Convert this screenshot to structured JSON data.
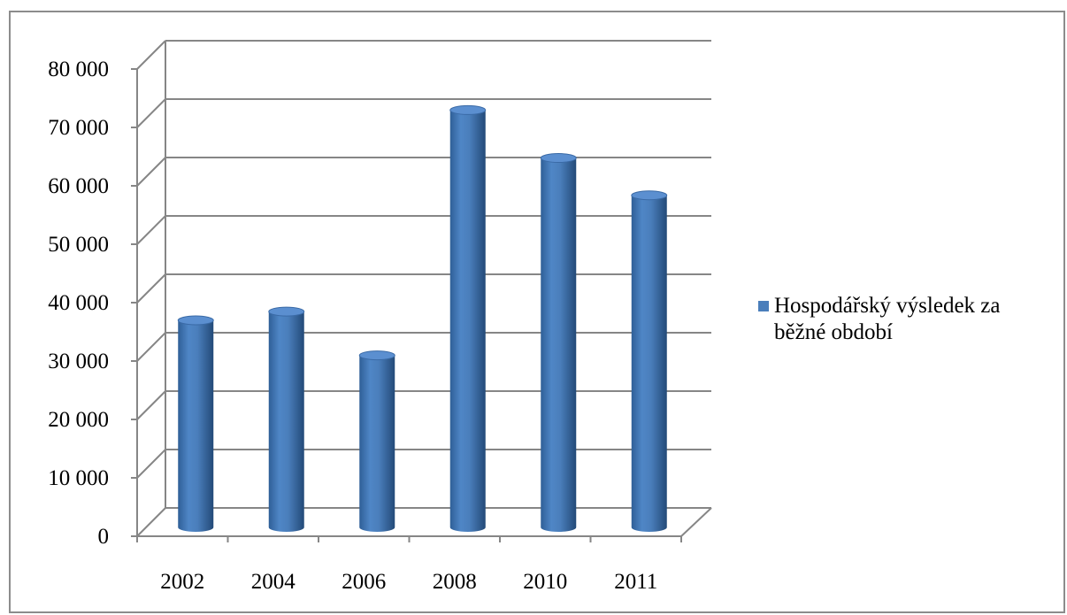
{
  "chart_data": {
    "type": "bar",
    "style": "3d-cylinder",
    "title": "",
    "xlabel": "",
    "ylabel": "",
    "categories": [
      "2002",
      "2004",
      "2006",
      "2008",
      "2010",
      "2011"
    ],
    "series": [
      {
        "name": "Hospodářský výsledek za běžné období",
        "values": [
          35000,
          36500,
          29000,
          71000,
          62800,
          56400
        ],
        "color": "#4a7ebb"
      }
    ],
    "ylim": [
      0,
      80000
    ],
    "yticks": [
      0,
      10000,
      20000,
      30000,
      40000,
      50000,
      60000,
      70000,
      80000
    ],
    "ytick_labels": [
      "0",
      "10 000",
      "20 000",
      "30 000",
      "40 000",
      "50 000",
      "60 000",
      "70 000",
      "80 000"
    ],
    "grid": true,
    "legend_position": "right"
  }
}
